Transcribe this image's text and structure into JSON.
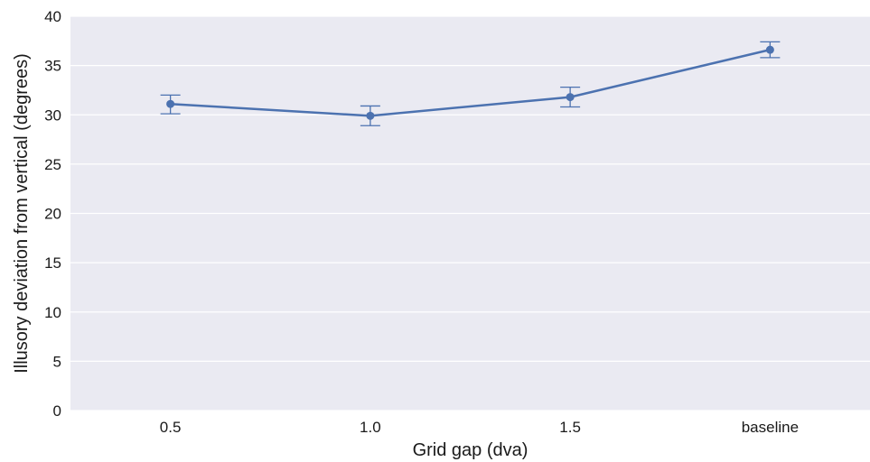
{
  "chart_data": {
    "type": "line",
    "title": "",
    "xlabel": "Grid gap (dva)",
    "ylabel": "Illusory deviation from vertical (degrees)",
    "categories": [
      "0.5",
      "1.0",
      "1.5",
      "baseline"
    ],
    "series": [
      {
        "values": [
          31.1,
          29.9,
          31.8,
          36.6
        ],
        "error_low": [
          30.1,
          28.9,
          30.8,
          35.8
        ],
        "error_high": [
          32.0,
          30.9,
          32.8,
          37.4
        ]
      }
    ],
    "ylim": [
      0,
      40
    ],
    "yticks": [
      "0",
      "5",
      "10",
      "15",
      "20",
      "25",
      "30",
      "35",
      "40"
    ],
    "grid": true,
    "colors": {
      "line": "#4c72b0",
      "background": "#eaeaf2",
      "grid": "#ffffff"
    }
  }
}
